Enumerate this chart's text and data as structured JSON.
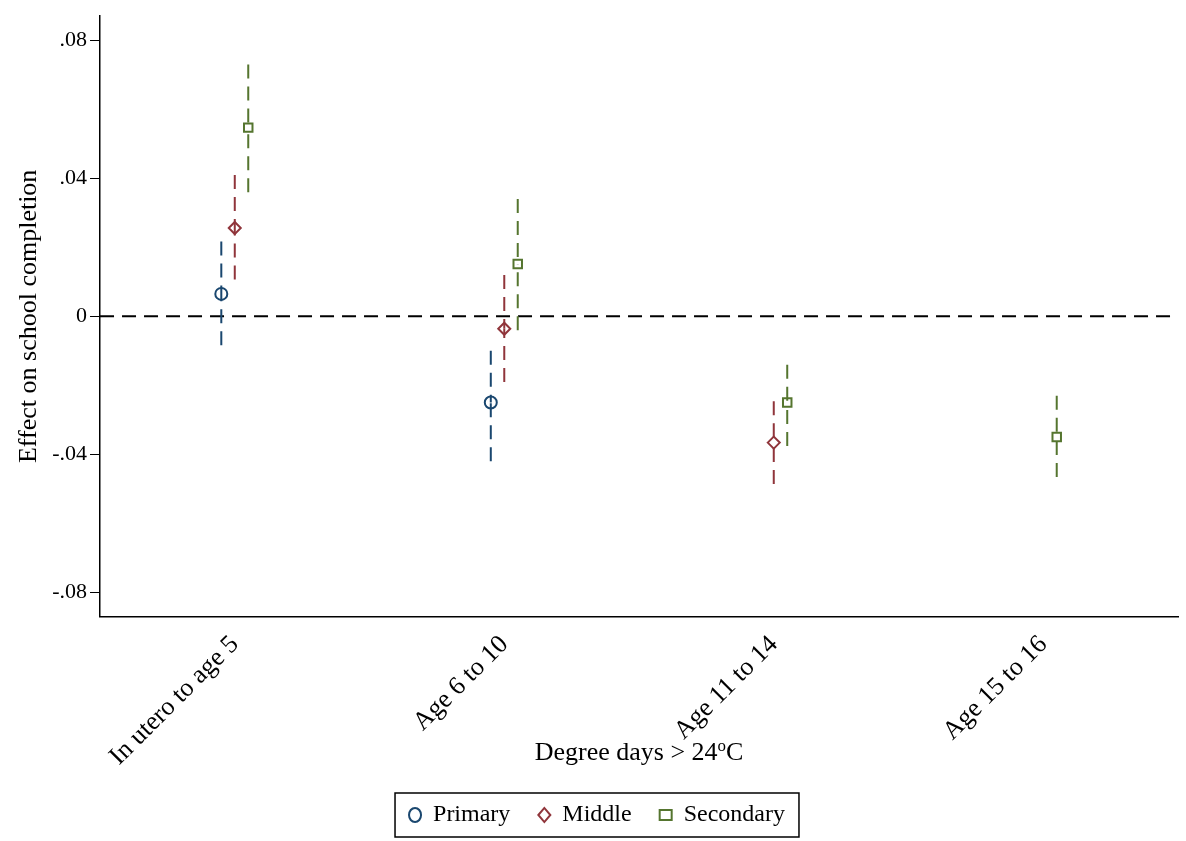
{
  "chart_data": {
    "type": "scatter",
    "xlabel": "Degree days > 24$^{o}$C",
    "ylabel": "Effect on school completion",
    "categories": [
      "In utero to age 5",
      "Age 6 to 10",
      "Age 11 to 14",
      "Age 15 to 16"
    ],
    "ylim": [
      -0.087,
      0.087
    ],
    "yticks": [
      {
        "value": -0.08,
        "label": "-.08"
      },
      {
        "value": -0.04,
        "label": "-.04"
      },
      {
        "value": 0,
        "label": "0"
      },
      {
        "value": 0.04,
        "label": ".04"
      },
      {
        "value": 0.08,
        "label": ".08"
      }
    ],
    "grid": false,
    "legend": "bottom",
    "line_style": "dashed",
    "ref_lines": [
      {
        "axis": "y",
        "value": 0,
        "color": "#000000",
        "line_style": "dashed"
      }
    ],
    "series": [
      {
        "name": "Primary",
        "color": "#1a476f",
        "marker": "circle",
        "values": [
          0.0065,
          -0.025,
          null,
          null
        ],
        "errors": [
          [
            -0.0084,
            0.0217
          ],
          [
            -0.042,
            -0.01
          ],
          null,
          null
        ]
      },
      {
        "name": "Middle",
        "color": "#90353b",
        "marker": "diamond",
        "values": [
          0.0256,
          -0.0036,
          -0.0366,
          null
        ],
        "errors": [
          [
            0.0107,
            0.041
          ],
          [
            -0.019,
            0.012
          ],
          [
            -0.0486,
            -0.0246
          ],
          null
        ]
      },
      {
        "name": "Secondary",
        "color": "#55752f",
        "marker": "square",
        "values": [
          0.0547,
          0.0152,
          -0.025,
          -0.035
        ],
        "errors": [
          [
            0.036,
            0.073
          ],
          [
            -0.004,
            0.034
          ],
          [
            -0.0376,
            -0.014
          ],
          [
            -0.0466,
            -0.023
          ]
        ]
      }
    ]
  }
}
